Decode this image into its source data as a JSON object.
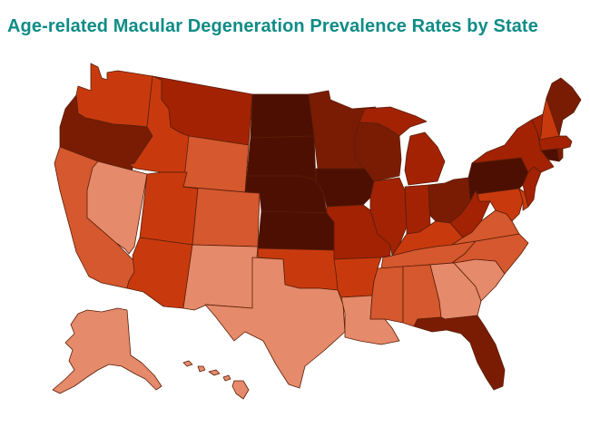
{
  "title": "Age-related Macular Degeneration Prevalence Rates by State",
  "colors": {
    "title": "#0f8c86",
    "tier1": "#e58a6a",
    "tier2": "#d5582e",
    "tier3": "#c83a0d",
    "tier4": "#a32204",
    "tier5": "#7a1c04",
    "tier6": "#4d0f01",
    "border": "#5a1e08"
  },
  "states": [
    {
      "abbr": "WA",
      "tier": 3
    },
    {
      "abbr": "OR",
      "tier": 5
    },
    {
      "abbr": "CA",
      "tier": 2
    },
    {
      "abbr": "NV",
      "tier": 1
    },
    {
      "abbr": "ID",
      "tier": 3
    },
    {
      "abbr": "MT",
      "tier": 4
    },
    {
      "abbr": "WY",
      "tier": 2
    },
    {
      "abbr": "UT",
      "tier": 3
    },
    {
      "abbr": "AZ",
      "tier": 3
    },
    {
      "abbr": "CO",
      "tier": 2
    },
    {
      "abbr": "NM",
      "tier": 1
    },
    {
      "abbr": "ND",
      "tier": 6
    },
    {
      "abbr": "SD",
      "tier": 6
    },
    {
      "abbr": "NE",
      "tier": 6
    },
    {
      "abbr": "KS",
      "tier": 6
    },
    {
      "abbr": "OK",
      "tier": 3
    },
    {
      "abbr": "TX",
      "tier": 1
    },
    {
      "abbr": "MN",
      "tier": 5
    },
    {
      "abbr": "IA",
      "tier": 6
    },
    {
      "abbr": "MO",
      "tier": 4
    },
    {
      "abbr": "AR",
      "tier": 3
    },
    {
      "abbr": "LA",
      "tier": 1
    },
    {
      "abbr": "WI",
      "tier": 5
    },
    {
      "abbr": "IL",
      "tier": 4
    },
    {
      "abbr": "MI",
      "tier": 4
    },
    {
      "abbr": "IN",
      "tier": 4
    },
    {
      "abbr": "OH",
      "tier": 5
    },
    {
      "abbr": "KY",
      "tier": 3
    },
    {
      "abbr": "TN",
      "tier": 2
    },
    {
      "abbr": "MS",
      "tier": 2
    },
    {
      "abbr": "AL",
      "tier": 2
    },
    {
      "abbr": "GA",
      "tier": 1
    },
    {
      "abbr": "FL",
      "tier": 5
    },
    {
      "abbr": "SC",
      "tier": 1
    },
    {
      "abbr": "NC",
      "tier": 2
    },
    {
      "abbr": "VA",
      "tier": 2
    },
    {
      "abbr": "WV",
      "tier": 4
    },
    {
      "abbr": "PA",
      "tier": 6
    },
    {
      "abbr": "NY",
      "tier": 4
    },
    {
      "abbr": "MD",
      "tier": 3
    },
    {
      "abbr": "DE",
      "tier": 3
    },
    {
      "abbr": "NJ",
      "tier": 4
    },
    {
      "abbr": "CT",
      "tier": 6
    },
    {
      "abbr": "RI",
      "tier": 5
    },
    {
      "abbr": "MA",
      "tier": 4
    },
    {
      "abbr": "VT",
      "tier": 4
    },
    {
      "abbr": "NH",
      "tier": 3
    },
    {
      "abbr": "ME",
      "tier": 5
    },
    {
      "abbr": "AK",
      "tier": 1
    },
    {
      "abbr": "HI",
      "tier": 1
    }
  ]
}
